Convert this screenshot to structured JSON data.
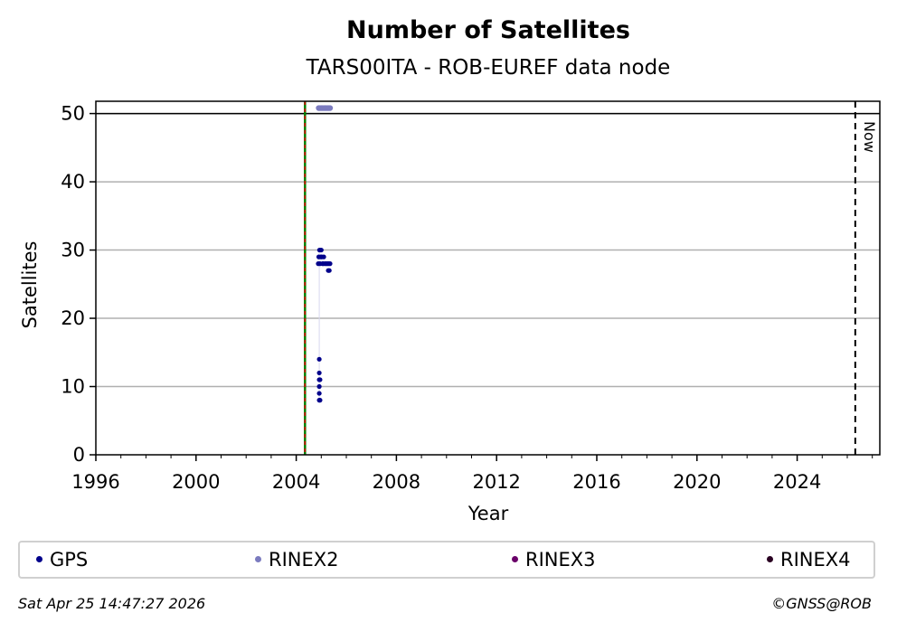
{
  "chart_data": {
    "type": "scatter",
    "title": "Number of Satellites",
    "subtitle": "TARS00ITA - ROB-EUREF data node",
    "xlabel": "Year",
    "ylabel": "Satellites",
    "xlim": [
      1996.0,
      2027.3
    ],
    "ylim": [
      0,
      51.8
    ],
    "xticks": [
      1996,
      2000,
      2004,
      2008,
      2012,
      2016,
      2020,
      2024
    ],
    "xtick_labels": [
      "1996",
      "2000",
      "2004",
      "2008",
      "2012",
      "2016",
      "2020",
      "2024"
    ],
    "yticks": [
      0,
      10,
      20,
      30,
      40,
      50
    ],
    "ytick_labels": [
      "0",
      "10",
      "20",
      "30",
      "40",
      "50"
    ],
    "grid": "horizontal",
    "hline": 50,
    "start_line": 2004.35,
    "now_line": 2026.32,
    "now_label": "Now",
    "series": [
      {
        "name": "GPS",
        "color": "#00008b",
        "points": [
          [
            2004.9,
            29
          ],
          [
            2004.93,
            30
          ],
          [
            2004.97,
            30
          ],
          [
            2005.0,
            30
          ],
          [
            2005.02,
            29
          ],
          [
            2004.88,
            28
          ],
          [
            2004.95,
            28
          ],
          [
            2005.05,
            28
          ],
          [
            2005.1,
            29
          ],
          [
            2005.15,
            28
          ],
          [
            2005.2,
            28
          ],
          [
            2005.25,
            28
          ],
          [
            2005.3,
            28
          ],
          [
            2005.35,
            28
          ],
          [
            2005.28,
            27
          ],
          [
            2005.32,
            27
          ],
          [
            2004.98,
            29
          ],
          [
            2005.08,
            28
          ],
          [
            2004.92,
            14
          ],
          [
            2004.92,
            12
          ],
          [
            2004.92,
            11
          ],
          [
            2004.95,
            11
          ],
          [
            2004.92,
            10
          ],
          [
            2004.92,
            9
          ],
          [
            2004.92,
            8
          ],
          [
            2004.95,
            8
          ]
        ]
      },
      {
        "name": "RINEX2",
        "color": "#7b7bbf",
        "points": [
          [
            2004.9,
            50.8
          ],
          [
            2004.95,
            50.8
          ],
          [
            2005.0,
            50.8
          ],
          [
            2005.05,
            50.8
          ],
          [
            2005.1,
            50.8
          ],
          [
            2005.15,
            50.8
          ],
          [
            2005.2,
            50.8
          ],
          [
            2005.25,
            50.8
          ],
          [
            2005.3,
            50.8
          ],
          [
            2005.35,
            50.8
          ]
        ]
      },
      {
        "name": "RINEX3",
        "color": "#6a0069",
        "points": []
      },
      {
        "name": "RINEX4",
        "color": "#2a0022",
        "points": []
      }
    ]
  },
  "legend": [
    {
      "label": "GPS",
      "color": "#00008b"
    },
    {
      "label": "RINEX2",
      "color": "#7b7bbf"
    },
    {
      "label": "RINEX3",
      "color": "#6a0069"
    },
    {
      "label": "RINEX4",
      "color": "#2a0022"
    }
  ],
  "footer": {
    "timestamp": "Sat Apr 25 14:47:27 2026",
    "copyright": "©GNSS@ROB"
  }
}
